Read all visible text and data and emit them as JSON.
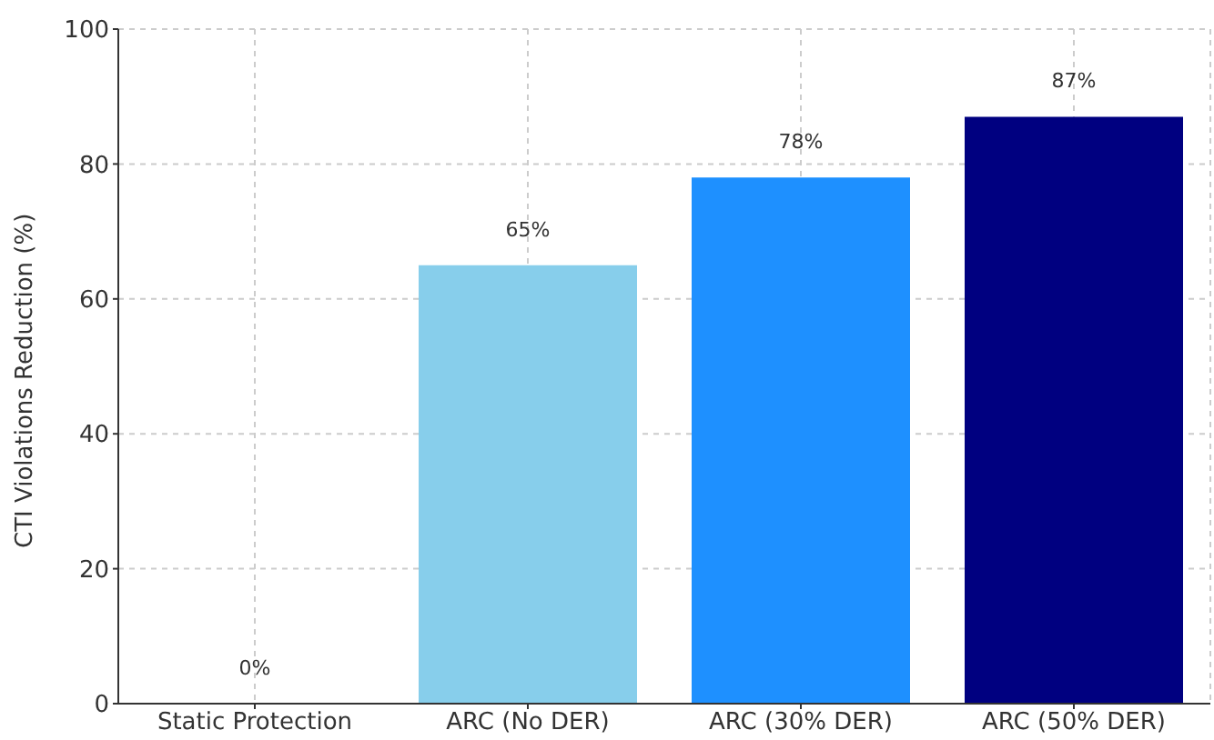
{
  "chart_data": {
    "type": "bar",
    "ylabel": "CTI Violations Reduction (%)",
    "categories": [
      "Static Protection",
      "ARC (No DER)",
      "ARC (30% DER)",
      "ARC (50% DER)"
    ],
    "values": [
      0,
      65,
      78,
      87
    ],
    "colors": [
      "#808080",
      "#87ceeb",
      "#1e90ff",
      "#000080"
    ],
    "value_labels": [
      "0%",
      "65%",
      "78%",
      "87%"
    ],
    "ylim": [
      0,
      100
    ],
    "yticks": [
      0,
      20,
      40,
      60,
      80,
      100
    ],
    "grid": true
  }
}
